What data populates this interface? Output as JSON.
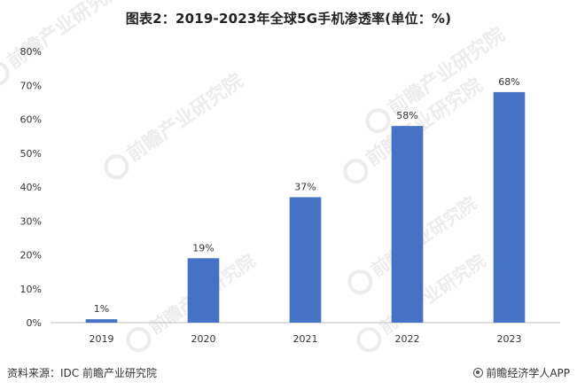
{
  "header": {
    "title": "图表2：2019-2023年全球5G手机渗透率(单位：%)"
  },
  "chart_data": {
    "type": "bar",
    "title": "图表2：2019-2023年全球5G手机渗透率(单位：%)",
    "categories": [
      "2019",
      "2020",
      "2021",
      "2022",
      "2023"
    ],
    "values": [
      1,
      19,
      37,
      58,
      68
    ],
    "value_labels": [
      "1%",
      "19%",
      "37%",
      "58%",
      "68%"
    ],
    "yticks": [
      "0%",
      "10%",
      "20%",
      "30%",
      "40%",
      "50%",
      "60%",
      "70%",
      "80%"
    ],
    "ylim": [
      0,
      80
    ],
    "xlabel": "",
    "ylabel": "",
    "grid": false,
    "bar_color": "#4472C4"
  },
  "watermark": {
    "text": "前瞻产业研究院",
    "color": "#ececec"
  },
  "footer": {
    "source": "资料来源：IDC 前瞻产业研究院",
    "brand": "前瞻经济学人APP",
    "brand_icon": "brand-logo-icon"
  }
}
